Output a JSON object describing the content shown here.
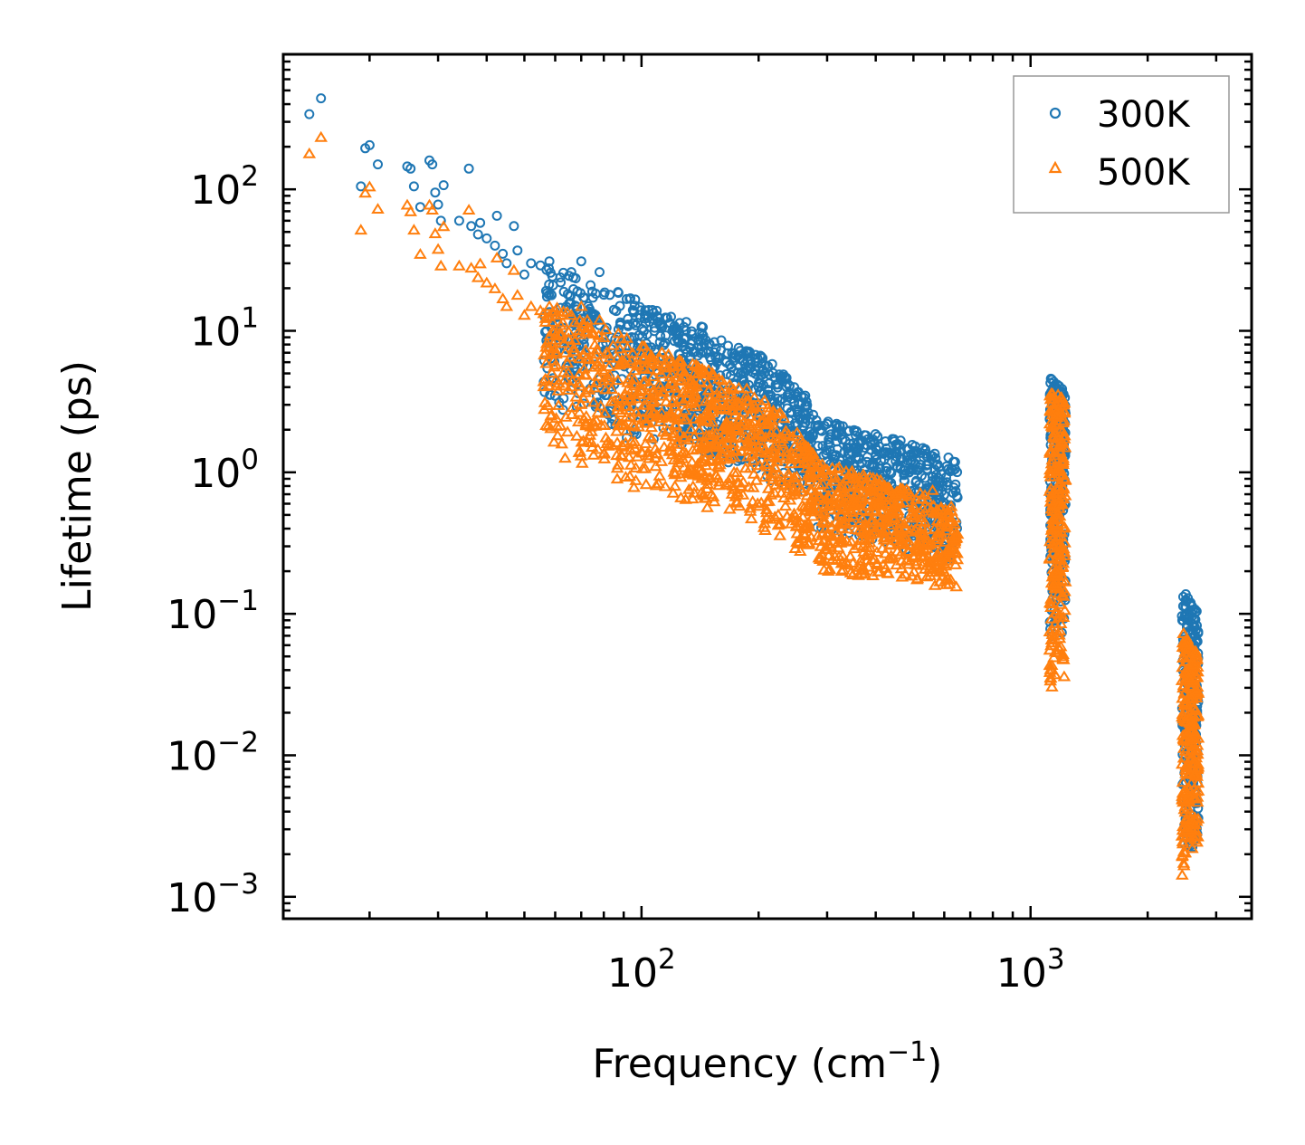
{
  "chart_data": {
    "type": "scatter",
    "xscale": "log",
    "yscale": "log",
    "xlim": [
      12,
      3700
    ],
    "ylim": [
      0.0007,
      900
    ],
    "xlabel": {
      "main": "Frequency (cm",
      "sup": "−1",
      "tail": ")"
    },
    "ylabel": "Lifetime (ps)",
    "x_ticks": [
      {
        "value": 100,
        "base": "10",
        "exp": "2"
      },
      {
        "value": 1000,
        "base": "10",
        "exp": "3"
      }
    ],
    "y_ticks": [
      {
        "value": 100,
        "base": "10",
        "exp": "2"
      },
      {
        "value": 10,
        "base": "10",
        "exp": "1"
      },
      {
        "value": 1,
        "base": "10",
        "exp": "0"
      },
      {
        "value": 0.1,
        "base": "10",
        "exp": "−1"
      },
      {
        "value": 0.01,
        "base": "10",
        "exp": "−2"
      },
      {
        "value": 0.001,
        "base": "10",
        "exp": "−3"
      }
    ],
    "legend": {
      "position": "top-right"
    },
    "series": [
      {
        "name": "300K",
        "marker": "circle",
        "color": "#1f77b4",
        "points": [
          [
            14,
            340
          ],
          [
            15,
            440
          ],
          [
            19,
            105
          ],
          [
            19.5,
            195
          ],
          [
            20,
            205
          ],
          [
            21,
            150
          ],
          [
            25,
            145
          ],
          [
            25.5,
            140
          ],
          [
            26,
            105
          ],
          [
            27,
            75
          ],
          [
            28.5,
            160
          ],
          [
            29,
            150
          ],
          [
            29.5,
            95
          ],
          [
            30,
            78
          ],
          [
            30.5,
            60
          ],
          [
            31,
            107
          ],
          [
            34,
            60
          ],
          [
            36,
            140
          ],
          [
            36.5,
            55
          ],
          [
            38,
            48
          ],
          [
            38.5,
            58
          ],
          [
            40,
            45
          ],
          [
            42,
            40
          ],
          [
            42.5,
            65
          ],
          [
            44,
            35
          ],
          [
            45,
            30
          ],
          [
            47,
            55
          ],
          [
            48,
            37
          ],
          [
            50,
            25
          ],
          [
            52,
            30
          ],
          [
            55,
            29
          ],
          [
            58,
            31
          ],
          [
            62,
            22
          ],
          [
            66,
            26
          ],
          [
            70,
            31
          ],
          [
            74,
            21
          ],
          [
            78,
            26
          ],
          [
            80,
            18
          ],
          [
            88,
            15
          ],
          [
            95,
            14
          ],
          [
            102,
            13
          ],
          [
            110,
            12.5
          ],
          [
            120,
            10
          ],
          [
            135,
            8.5
          ],
          [
            150,
            6.5
          ],
          [
            165,
            6
          ],
          [
            180,
            5
          ],
          [
            200,
            4
          ],
          [
            230,
            3.3
          ],
          [
            260,
            2.6
          ],
          [
            300,
            2.2
          ],
          [
            350,
            1.6
          ],
          [
            400,
            1.3
          ],
          [
            450,
            1.2
          ],
          [
            500,
            1.05
          ],
          [
            560,
            1.3
          ],
          [
            620,
            0.55
          ]
        ],
        "bands": [
          {
            "x": [
              56,
              100
            ],
            "y": [
              [
                30,
                3
              ],
              [
                16,
                1.5
              ]
            ],
            "n": 260
          },
          {
            "x": [
              100,
              280
            ],
            "y": [
              [
                15,
                1.8
              ],
              [
                2.8,
                0.55
              ]
            ],
            "n": 620
          },
          {
            "x": [
              280,
              650
            ],
            "y": [
              [
                2.4,
                0.38
              ],
              [
                1.2,
                0.22
              ]
            ],
            "n": 520
          },
          {
            "x": [
              1120,
              1230
            ],
            "y": [
              [
                5,
                0.07
              ],
              [
                4,
                0.06
              ]
            ],
            "n": 260
          },
          {
            "x": [
              2450,
              2700
            ],
            "y": [
              [
                0.15,
                0.0018
              ],
              [
                0.1,
                0.0025
              ]
            ],
            "n": 260
          }
        ]
      },
      {
        "name": "500K",
        "marker": "triangle",
        "color": "#ff7f0e",
        "points": [
          [
            14,
            180
          ],
          [
            15,
            235
          ],
          [
            19,
            52
          ],
          [
            19.5,
            95
          ],
          [
            20,
            105
          ],
          [
            21,
            73
          ],
          [
            25,
            78
          ],
          [
            25.5,
            70
          ],
          [
            26,
            52
          ],
          [
            27,
            35
          ],
          [
            28.5,
            78
          ],
          [
            29,
            72
          ],
          [
            29.5,
            49
          ],
          [
            30,
            38
          ],
          [
            30.5,
            29
          ],
          [
            31,
            55
          ],
          [
            34,
            29
          ],
          [
            36,
            72
          ],
          [
            36.5,
            28
          ],
          [
            38,
            24
          ],
          [
            38.5,
            30
          ],
          [
            40,
            22
          ],
          [
            42,
            20
          ],
          [
            42.5,
            33
          ],
          [
            44,
            17
          ],
          [
            45,
            15
          ],
          [
            47,
            27
          ],
          [
            48,
            18
          ],
          [
            50,
            13
          ],
          [
            52,
            15
          ],
          [
            55,
            14
          ],
          [
            58,
            15
          ],
          [
            62,
            11
          ],
          [
            66,
            13
          ],
          [
            70,
            15
          ],
          [
            74,
            10.5
          ],
          [
            78,
            12
          ],
          [
            80,
            9
          ],
          [
            88,
            7.5
          ],
          [
            95,
            7
          ],
          [
            102,
            6.5
          ],
          [
            110,
            6
          ],
          [
            120,
            5
          ],
          [
            135,
            4.2
          ],
          [
            150,
            3.3
          ],
          [
            165,
            3
          ],
          [
            180,
            2.4
          ],
          [
            200,
            2
          ],
          [
            230,
            1.6
          ],
          [
            260,
            1.3
          ],
          [
            300,
            1.05
          ],
          [
            350,
            0.8
          ],
          [
            400,
            0.65
          ],
          [
            450,
            0.6
          ],
          [
            500,
            0.5
          ],
          [
            560,
            0.75
          ],
          [
            620,
            0.3
          ]
        ],
        "bands": [
          {
            "x": [
              56,
              100
            ],
            "y": [
              [
                16,
                1.4
              ],
              [
                8,
                0.7
              ]
            ],
            "n": 260
          },
          {
            "x": [
              100,
              280
            ],
            "y": [
              [
                8,
                0.75
              ],
              [
                1.3,
                0.22
              ]
            ],
            "n": 620
          },
          {
            "x": [
              280,
              650
            ],
            "y": [
              [
                1.2,
                0.2
              ],
              [
                0.55,
                0.15
              ]
            ],
            "n": 520
          },
          {
            "x": [
              1120,
              1230
            ],
            "y": [
              [
                4,
                0.03
              ],
              [
                3.2,
                0.028
              ]
            ],
            "n": 260
          },
          {
            "x": [
              2450,
              2700
            ],
            "y": [
              [
                0.08,
                0.0013
              ],
              [
                0.05,
                0.0025
              ]
            ],
            "n": 260
          }
        ]
      }
    ]
  }
}
